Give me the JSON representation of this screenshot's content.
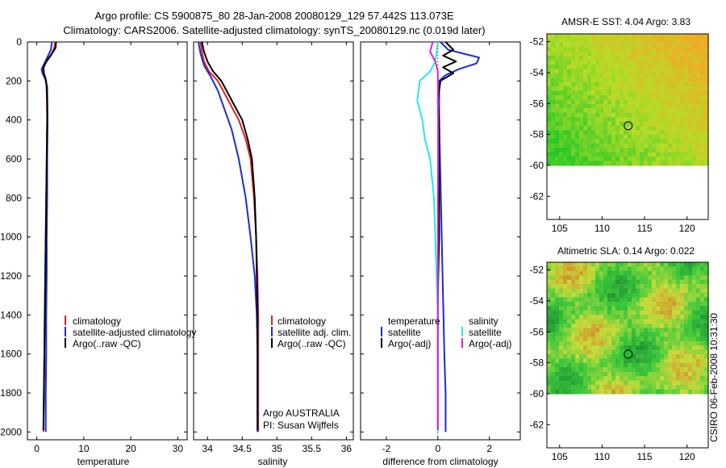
{
  "title_line1": "Argo profile: CS 5900875_80 28-Jan-2008 20080129_129 57.442S 113.073E",
  "title_line2": "Climatology: CARS2006. Satellite-adjusted climatology: synTS_20080129.nc (0.019d later)",
  "credit": "CSIRO 06-Feb-2008 10:31:30",
  "colors": {
    "red": "#e02020",
    "blue": "#1a2bd8",
    "black": "#000000",
    "cyan": "#22e8f0",
    "magenta": "#e020e0"
  },
  "depth_axis": {
    "ylim": [
      0,
      2040
    ],
    "ticks": [
      0,
      200,
      400,
      600,
      800,
      1000,
      1200,
      1400,
      1600,
      1800,
      2000
    ],
    "tick_labels": [
      "0",
      "200",
      "400",
      "600",
      "800",
      "1000",
      "1200",
      "1400",
      "1600",
      "1800",
      "2000"
    ]
  },
  "chart_data": [
    {
      "id": "temperature",
      "type": "line",
      "xlabel": "temperature",
      "xlim": [
        -2,
        32
      ],
      "xticks": [
        0,
        10,
        20,
        30
      ],
      "xtick_labels": [
        "0",
        "10",
        "20",
        "30"
      ],
      "legend": [
        "climatology",
        "satellite-adjusted climatology",
        "Argo(..raw -QC)"
      ],
      "series": [
        {
          "name": "climatology",
          "color": "red",
          "points": [
            [
              3.9,
              0
            ],
            [
              3.7,
              30
            ],
            [
              3.0,
              70
            ],
            [
              1.8,
              110
            ],
            [
              1.2,
              150
            ],
            [
              1.6,
              180
            ],
            [
              2.0,
              200
            ],
            [
              2.1,
              260
            ],
            [
              2.2,
              400
            ],
            [
              2.1,
              600
            ],
            [
              2.0,
              800
            ],
            [
              1.9,
              1000
            ],
            [
              1.8,
              1200
            ],
            [
              1.7,
              1400
            ],
            [
              1.6,
              1600
            ],
            [
              1.5,
              1800
            ],
            [
              1.4,
              2000
            ]
          ]
        },
        {
          "name": "satellite-adjusted climatology",
          "color": "blue",
          "points": [
            [
              3.2,
              0
            ],
            [
              3.0,
              40
            ],
            [
              2.0,
              90
            ],
            [
              1.0,
              140
            ],
            [
              1.2,
              160
            ],
            [
              1.8,
              190
            ],
            [
              2.2,
              230
            ],
            [
              2.3,
              400
            ],
            [
              2.2,
              600
            ],
            [
              2.2,
              800
            ],
            [
              2.1,
              1000
            ],
            [
              2.1,
              1200
            ],
            [
              2.0,
              1400
            ],
            [
              2.0,
              1600
            ],
            [
              1.9,
              1800
            ],
            [
              1.9,
              2000
            ]
          ]
        },
        {
          "name": "Argo(..raw -QC)",
          "color": "black",
          "points": [
            [
              4.1,
              0
            ],
            [
              4.0,
              30
            ],
            [
              3.2,
              60
            ],
            [
              2.3,
              90
            ],
            [
              1.4,
              130
            ],
            [
              1.5,
              160
            ],
            [
              1.9,
              190
            ],
            [
              2.1,
              230
            ],
            [
              2.2,
              300
            ],
            [
              2.2,
              400
            ],
            [
              2.1,
              600
            ],
            [
              2.0,
              800
            ],
            [
              1.9,
              1000
            ],
            [
              1.8,
              1200
            ],
            [
              1.7,
              1400
            ],
            [
              1.6,
              1600
            ],
            [
              1.5,
              1800
            ],
            [
              1.4,
              1990
            ]
          ]
        }
      ]
    },
    {
      "id": "salinity",
      "type": "line",
      "xlabel": "salinity",
      "xlim": [
        33.8,
        36.1
      ],
      "xticks": [
        34,
        34.5,
        35,
        35.5,
        36
      ],
      "xtick_labels": [
        "34",
        "34.5",
        "35",
        "35.5",
        "36"
      ],
      "legend": [
        "climatology",
        "satellite adj. clim.",
        "Argo(..raw -QC)"
      ],
      "annotation": [
        "Argo AUSTRALIA",
        "PI: Susan Wijffels"
      ],
      "series": [
        {
          "name": "climatology",
          "color": "red",
          "points": [
            [
              33.9,
              0
            ],
            [
              33.92,
              50
            ],
            [
              33.95,
              100
            ],
            [
              34.02,
              150
            ],
            [
              34.15,
              200
            ],
            [
              34.3,
              300
            ],
            [
              34.45,
              400
            ],
            [
              34.55,
              500
            ],
            [
              34.62,
              600
            ],
            [
              34.67,
              800
            ],
            [
              34.7,
              1000
            ],
            [
              34.72,
              1200
            ],
            [
              34.73,
              1400
            ],
            [
              34.73,
              1600
            ],
            [
              34.73,
              1800
            ],
            [
              34.73,
              2000
            ]
          ]
        },
        {
          "name": "satellite adj. clim.",
          "color": "blue",
          "points": [
            [
              33.87,
              0
            ],
            [
              33.9,
              60
            ],
            [
              33.95,
              120
            ],
            [
              34.05,
              180
            ],
            [
              34.15,
              250
            ],
            [
              34.25,
              350
            ],
            [
              34.35,
              450
            ],
            [
              34.45,
              600
            ],
            [
              34.55,
              800
            ],
            [
              34.62,
              1000
            ],
            [
              34.68,
              1200
            ],
            [
              34.71,
              1400
            ],
            [
              34.72,
              1600
            ],
            [
              34.72,
              1800
            ],
            [
              34.72,
              2000
            ]
          ]
        },
        {
          "name": "Argo(..raw -QC)",
          "color": "black",
          "points": [
            [
              33.92,
              0
            ],
            [
              33.95,
              50
            ],
            [
              34.0,
              100
            ],
            [
              34.08,
              150
            ],
            [
              34.2,
              200
            ],
            [
              34.35,
              300
            ],
            [
              34.5,
              400
            ],
            [
              34.58,
              500
            ],
            [
              34.64,
              600
            ],
            [
              34.68,
              800
            ],
            [
              34.7,
              1000
            ],
            [
              34.71,
              1200
            ],
            [
              34.72,
              1400
            ],
            [
              34.72,
              1600
            ],
            [
              34.72,
              1800
            ],
            [
              34.72,
              1990
            ]
          ]
        }
      ]
    },
    {
      "id": "difference",
      "type": "line",
      "xlabel": "difference from climatology",
      "xlim": [
        -3,
        3.2
      ],
      "xticks": [
        -2,
        0,
        2
      ],
      "xtick_labels": [
        "-2",
        "0",
        "2"
      ],
      "legend_temperature": {
        "title": "temperature",
        "items": [
          "satellite",
          "Argo(-adj)"
        ]
      },
      "legend_salinity": {
        "title": "salinity",
        "items": [
          "satellite",
          "Argo(-adj)"
        ]
      },
      "series": [
        {
          "name": "temperature satellite",
          "color": "blue",
          "points": [
            [
              0.1,
              0
            ],
            [
              0.4,
              40
            ],
            [
              1.0,
              60
            ],
            [
              1.6,
              80
            ],
            [
              1.5,
              110
            ],
            [
              0.8,
              140
            ],
            [
              0.3,
              170
            ],
            [
              0.05,
              200
            ],
            [
              0.05,
              400
            ],
            [
              0.1,
              700
            ],
            [
              0.15,
              1000
            ],
            [
              0.2,
              1300
            ],
            [
              0.25,
              1600
            ],
            [
              0.3,
              1800
            ],
            [
              0.3,
              2000
            ]
          ]
        },
        {
          "name": "temperature Argo(-adj)",
          "color": "black",
          "points": [
            [
              0.3,
              0
            ],
            [
              0.6,
              40
            ],
            [
              0.2,
              70
            ],
            [
              0.7,
              100
            ],
            [
              0.2,
              130
            ],
            [
              0.6,
              160
            ],
            [
              0.1,
              200
            ],
            [
              0.0,
              300
            ],
            [
              0.05,
              400
            ],
            [
              0.05,
              700
            ],
            [
              0.05,
              1000
            ],
            [
              0.0,
              1300
            ],
            [
              0.0,
              1600
            ],
            [
              0.0,
              1800
            ],
            [
              0.0,
              1990
            ]
          ]
        },
        {
          "name": "salinity satellite",
          "color": "cyan",
          "points": [
            [
              0.0,
              0
            ],
            [
              -0.1,
              100
            ],
            [
              -0.3,
              150
            ],
            [
              -0.7,
              200
            ],
            [
              -0.8,
              300
            ],
            [
              -0.6,
              400
            ],
            [
              -0.5,
              500
            ],
            [
              -0.3,
              600
            ],
            [
              -0.15,
              800
            ],
            [
              -0.1,
              1000
            ],
            [
              -0.05,
              1200
            ],
            [
              0.0,
              1400
            ],
            [
              0.0,
              1600
            ],
            [
              0.0,
              1800
            ],
            [
              0.0,
              2000
            ]
          ]
        },
        {
          "name": "salinity Argo(-adj)",
          "color": "magenta",
          "points": [
            [
              -0.2,
              0
            ],
            [
              -0.3,
              50
            ],
            [
              -0.1,
              100
            ],
            [
              0.0,
              150
            ],
            [
              0.0,
              200
            ],
            [
              0.01,
              400
            ],
            [
              0.01,
              600
            ],
            [
              0.0,
              800
            ],
            [
              0.0,
              1000
            ],
            [
              0.0,
              1200
            ],
            [
              0.0,
              1400
            ],
            [
              0.0,
              1600
            ],
            [
              0.0,
              1800
            ],
            [
              0.0,
              1990
            ]
          ]
        }
      ]
    },
    {
      "id": "sst_map",
      "type": "heatmap",
      "title": "AMSR-E SST: 4.04 Argo: 3.83",
      "xlim": [
        103.5,
        122.5
      ],
      "ylim": [
        -63.5,
        -51.5
      ],
      "data_ylim": [
        -60,
        -51.5
      ],
      "xticks": [
        105,
        110,
        115,
        120
      ],
      "xtick_labels": [
        "105",
        "110",
        "115",
        "120"
      ],
      "yticks": [
        -52,
        -54,
        -56,
        -58,
        -60,
        -62
      ],
      "ytick_labels": [
        "-52",
        "-54",
        "-56",
        "-58",
        "-60",
        "-62"
      ],
      "marker": {
        "lon": 113.07,
        "lat": -57.44
      }
    },
    {
      "id": "sla_map",
      "type": "heatmap",
      "title": "Altimetric SLA: 0.14 Argo: 0.022",
      "xlim": [
        103.5,
        122.5
      ],
      "ylim": [
        -63.5,
        -51.5
      ],
      "data_ylim": [
        -60,
        -51.5
      ],
      "xticks": [
        105,
        110,
        115,
        120
      ],
      "xtick_labels": [
        "105",
        "110",
        "115",
        "120"
      ],
      "yticks": [
        -52,
        -54,
        -56,
        -58,
        -60,
        -62
      ],
      "ytick_labels": [
        "-52",
        "-54",
        "-56",
        "-58",
        "-60",
        "-62"
      ],
      "marker": {
        "lon": 113.07,
        "lat": -57.44
      }
    }
  ]
}
